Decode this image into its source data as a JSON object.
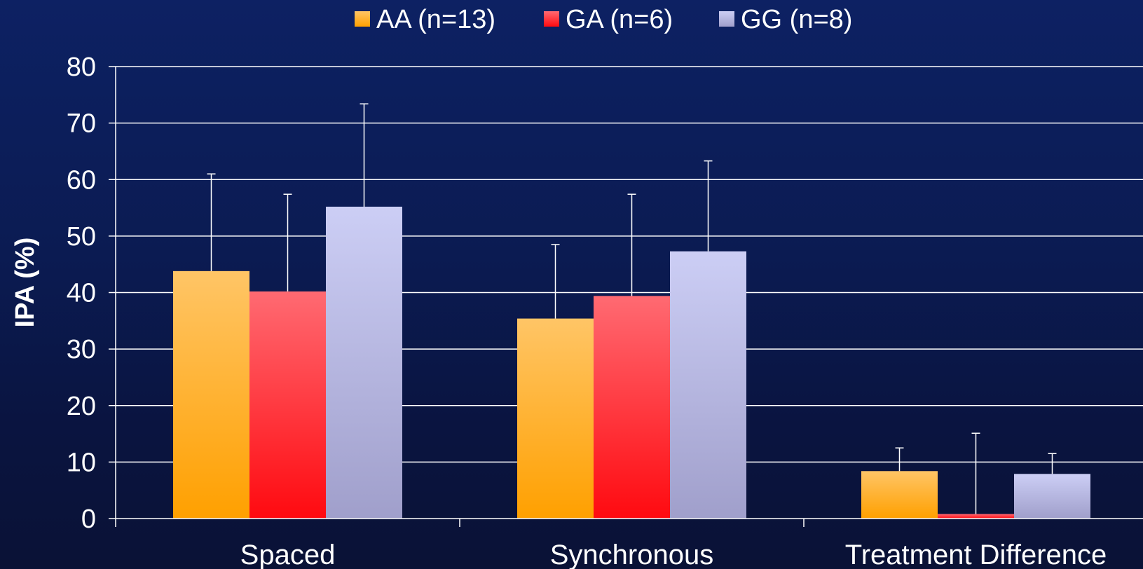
{
  "chart_data": {
    "type": "bar",
    "title": "",
    "xlabel": "",
    "ylabel": "IPA (%)",
    "ylim": [
      0,
      80
    ],
    "yticks": [
      0,
      10,
      20,
      30,
      40,
      50,
      60,
      70,
      80
    ],
    "grid": true,
    "legend_position": "top-center",
    "categories": [
      "Spaced",
      "Synchronous",
      "Treatment Difference"
    ],
    "series": [
      {
        "name": "AA (n=13)",
        "values": [
          43.8,
          35.4,
          8.4
        ],
        "error_upper": [
          61.0,
          48.5,
          12.5
        ],
        "color_top": "#ffc566",
        "color_bottom": "#ffa000"
      },
      {
        "name": "GA (n=6)",
        "values": [
          40.2,
          39.4,
          0.8
        ],
        "error_upper": [
          57.4,
          57.4,
          15.1
        ],
        "color_top": "#ff6a72",
        "color_bottom": "#ff0a10"
      },
      {
        "name": "GG (n=8)",
        "values": [
          55.2,
          47.3,
          7.9
        ],
        "error_upper": [
          73.4,
          63.3,
          11.5
        ],
        "color_top": "#cccef5",
        "color_bottom": "#a09fcb"
      }
    ],
    "colors": {
      "axis": "#ffffff",
      "grid": "#ffffff",
      "text": "#ffffff"
    }
  }
}
